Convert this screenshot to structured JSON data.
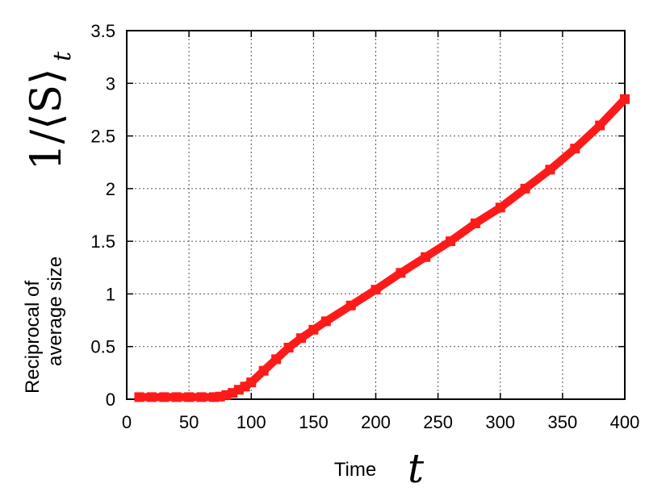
{
  "chart_data": {
    "type": "line",
    "x_range": [
      0,
      400
    ],
    "y_range": [
      0,
      3.5
    ],
    "x_ticks": [
      "0",
      "50",
      "100",
      "150",
      "200",
      "250",
      "300",
      "350",
      "400"
    ],
    "y_ticks": [
      "0",
      "0.5",
      "1",
      "1.5",
      "2",
      "2.5",
      "3",
      "3.5"
    ],
    "x_label_word": "Time",
    "x_label_symbol": "t",
    "y_label_words": [
      "Reciprocal of",
      "average size"
    ],
    "y_label_symbol": "1/⟨S⟩",
    "y_label_subscript": "t",
    "grid": true,
    "series_color": "#ff1a1a",
    "series": [
      {
        "x": [
          10,
          20,
          30,
          40,
          50,
          60,
          70,
          75,
          80,
          85,
          90,
          95,
          100,
          110,
          120,
          130,
          140,
          150,
          160,
          180,
          200,
          220,
          240,
          260,
          280,
          300,
          320,
          340,
          360,
          380,
          400
        ],
        "y": [
          0.02,
          0.02,
          0.02,
          0.02,
          0.02,
          0.02,
          0.02,
          0.025,
          0.04,
          0.06,
          0.09,
          0.12,
          0.16,
          0.27,
          0.38,
          0.49,
          0.58,
          0.66,
          0.74,
          0.89,
          1.04,
          1.2,
          1.35,
          1.5,
          1.67,
          1.82,
          2.0,
          2.18,
          2.38,
          2.6,
          2.85
        ]
      }
    ]
  }
}
